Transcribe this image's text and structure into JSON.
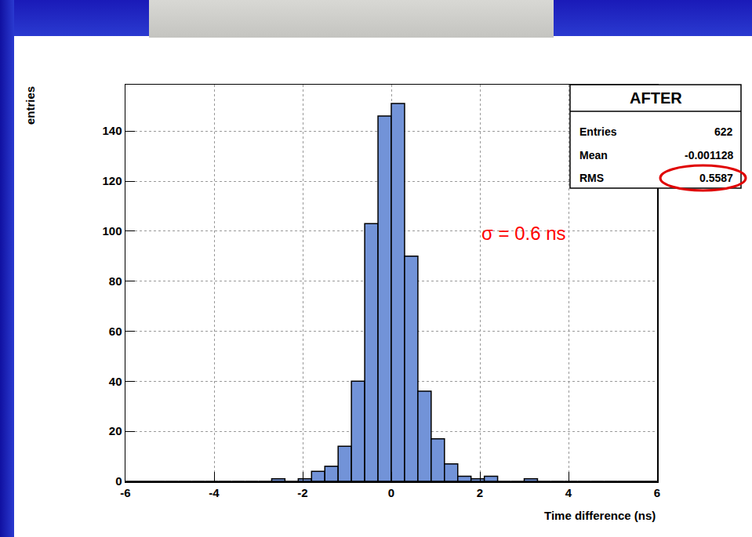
{
  "chart_data": {
    "type": "histogram",
    "x_label": "Time difference (ns)",
    "y_label": "entries",
    "bins": [
      -6.0,
      -5.7,
      -5.4,
      -5.1,
      -4.8,
      -4.5,
      -4.2,
      -3.9,
      -3.6,
      -3.3,
      -3.0,
      -2.7,
      -2.4,
      -2.1,
      -1.8,
      -1.5,
      -1.2,
      -0.9,
      -0.6,
      -0.3,
      0.0,
      0.3,
      0.6,
      0.9,
      1.2,
      1.5,
      1.8,
      2.1,
      2.4,
      2.7,
      3.0,
      3.3,
      3.6,
      3.9,
      4.2,
      4.5,
      4.8,
      5.1,
      5.4,
      5.7,
      6.0
    ],
    "values": [
      0,
      0,
      0,
      0,
      0,
      0,
      0,
      0,
      0,
      0,
      0,
      1,
      0,
      1,
      4,
      6,
      14,
      40,
      103,
      146,
      151,
      90,
      36,
      17,
      7,
      2,
      1,
      2,
      0,
      0,
      1,
      0,
      0,
      0,
      0,
      0,
      0,
      0,
      0,
      0
    ],
    "color": "#7293d8",
    "xlim": [
      -6,
      6
    ],
    "ylim": [
      0,
      158.55
    ],
    "xticks": [
      -6,
      -4,
      -2,
      0,
      2,
      4,
      6
    ],
    "yticks": [
      0,
      20,
      40,
      60,
      80,
      100,
      120,
      140
    ],
    "grid": true,
    "stats_box": {
      "title": "AFTER",
      "rows": [
        {
          "label": "Entries",
          "value": 622
        },
        {
          "label": "Mean",
          "value": -0.001128
        },
        {
          "label": "RMS",
          "value": 0.5587
        }
      ]
    },
    "annotations": [
      {
        "text": "σ = 0.6 ns",
        "color": "#ff0000"
      }
    ]
  }
}
